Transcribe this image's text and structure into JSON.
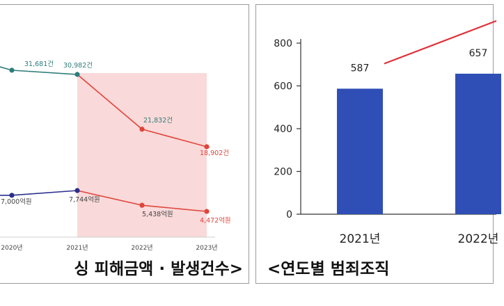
{
  "left": {
    "caption": "싱 피해금액 · 발생건수>",
    "x_labels": [
      "2020년",
      "2021년",
      "2022년",
      "2023년"
    ],
    "chart_data": {
      "type": "line",
      "categories": [
        "2020년",
        "2021년",
        "2022년",
        "2023년"
      ],
      "series": [
        {
          "values": [
            31681,
            30982,
            21832,
            18902
          ],
          "labels": [
            "31,681건",
            "30,982건",
            "21,832건",
            "18,902건"
          ]
        },
        {
          "values": [
            7000,
            7744,
            5438,
            4472
          ],
          "labels": [
            "7,000억원",
            "7,744억원",
            "5,438억원",
            "4,472억원"
          ]
        }
      ],
      "colors": {
        "before": "#2e7d7a",
        "after": "#e0443a",
        "amount_before": "#2b2f8a",
        "highlight": "#f9d9d9"
      }
    }
  },
  "right": {
    "caption": "<연도별 범죄조직",
    "chart_data": {
      "type": "bar",
      "categories": [
        "2021년",
        "2022년"
      ],
      "values": [
        587,
        657
      ],
      "value_labels": [
        "587",
        "657"
      ],
      "ylim": [
        0,
        800
      ],
      "yticks": [
        "0",
        "200",
        "400",
        "600",
        "800"
      ],
      "trend_line": true,
      "colors": {
        "bar": "#2f4fb6",
        "trend": "#e0303a"
      }
    }
  }
}
